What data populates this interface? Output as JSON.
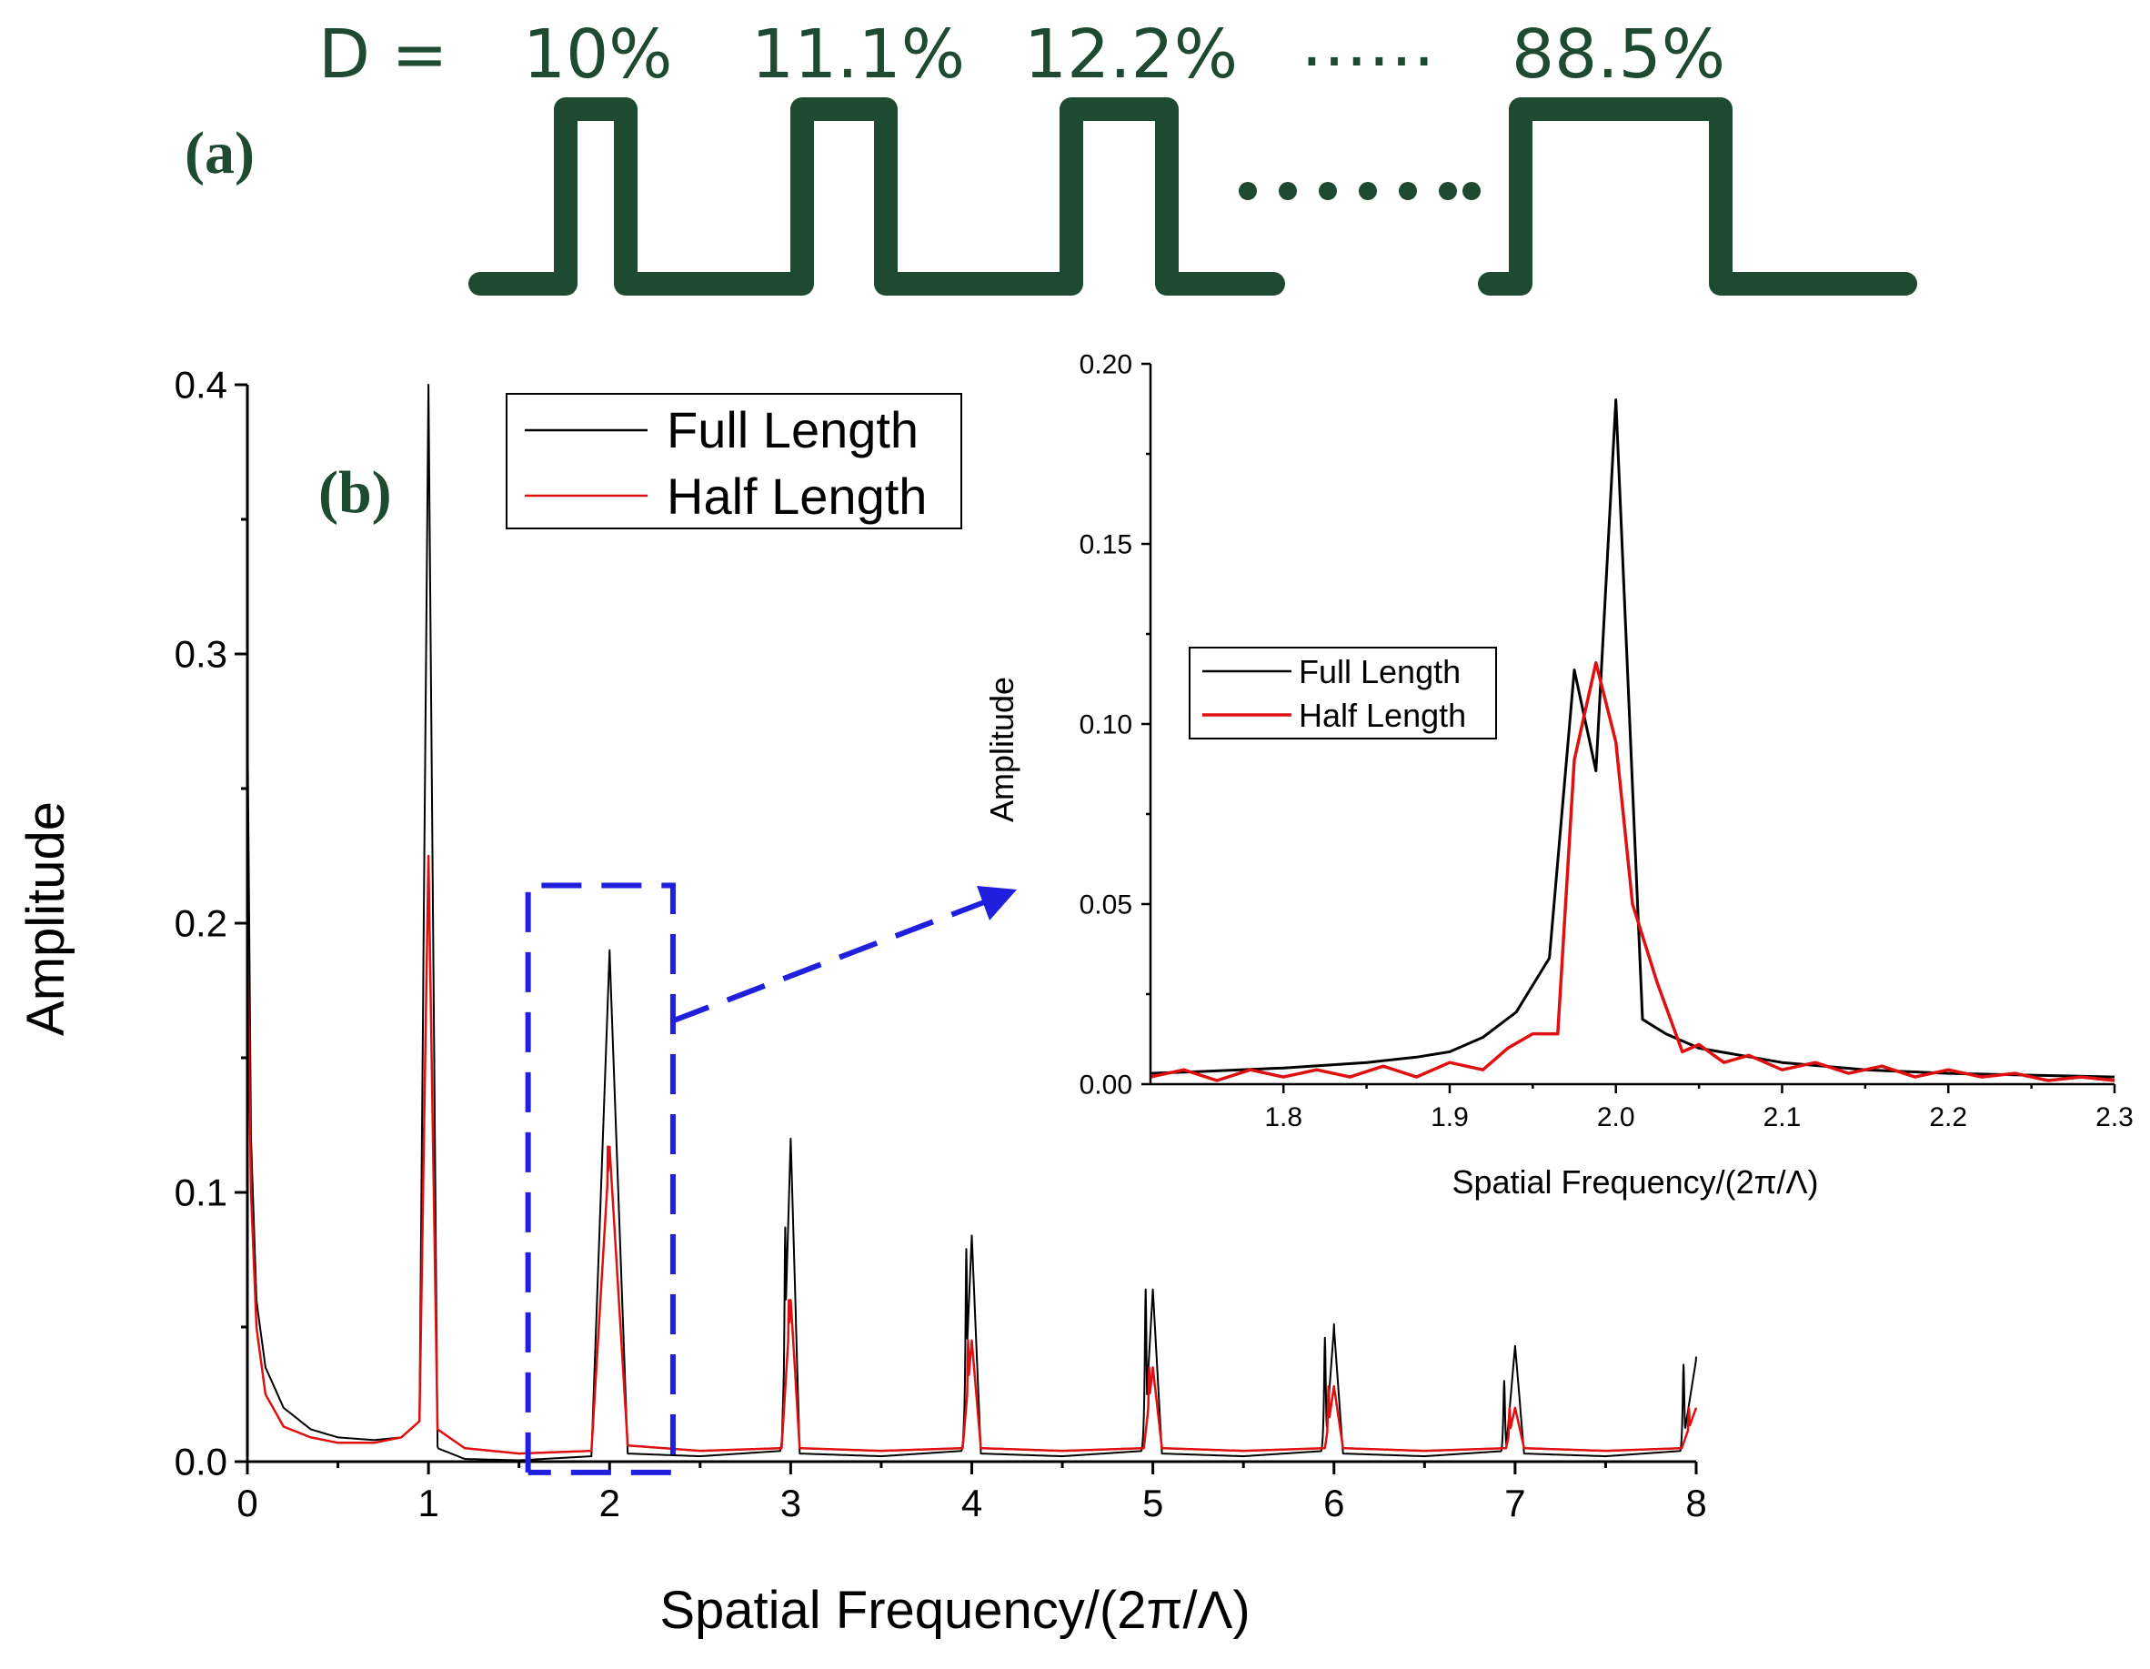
{
  "panel_a": {
    "label": "(a)",
    "d_label": "D =",
    "duty_cycles": [
      "10%",
      "11.1%",
      "12.2%",
      "88.5%"
    ],
    "ellipsis": "……",
    "colors": {
      "waveform": "#1d4a30"
    }
  },
  "chart_data": [
    {
      "id": "main",
      "type": "line",
      "panel_label": "(b)",
      "title": "",
      "xlabel": "Spatial Frequency/(2π/Λ)",
      "ylabel": "Amplitude",
      "xlim": [
        0,
        8
      ],
      "ylim": [
        0,
        0.4
      ],
      "xticks": [
        "0",
        "1",
        "2",
        "3",
        "4",
        "5",
        "6",
        "7",
        "8"
      ],
      "yticks": [
        "0.0",
        "0.1",
        "0.2",
        "0.3",
        "0.4"
      ],
      "legend": [
        "Full Length",
        "Half Length"
      ],
      "legend_position": "top-center",
      "grid": false,
      "series": [
        {
          "name": "Full Length",
          "color": "#000000",
          "base": [
            [
              0,
              0.28
            ],
            [
              0.02,
              0.12
            ],
            [
              0.05,
              0.06
            ],
            [
              0.1,
              0.035
            ],
            [
              0.2,
              0.02
            ],
            [
              0.35,
              0.012
            ],
            [
              0.5,
              0.009
            ],
            [
              0.7,
              0.008
            ],
            [
              0.85,
              0.009
            ],
            [
              0.95,
              0.015
            ],
            [
              1.0,
              0.4
            ],
            [
              1.05,
              0.005
            ],
            [
              1.2,
              0.001
            ],
            [
              1.5,
              0.0005
            ],
            [
              1.9,
              0.002
            ],
            [
              2.0,
              0.19
            ],
            [
              2.1,
              0.003
            ],
            [
              2.5,
              0.002
            ],
            [
              2.95,
              0.004
            ],
            [
              3.0,
              0.12
            ],
            [
              3.05,
              0.003
            ],
            [
              3.5,
              0.002
            ],
            [
              3.95,
              0.004
            ],
            [
              4.0,
              0.084
            ],
            [
              4.05,
              0.003
            ],
            [
              4.5,
              0.002
            ],
            [
              4.95,
              0.004
            ],
            [
              5.0,
              0.064
            ],
            [
              5.05,
              0.003
            ],
            [
              5.5,
              0.002
            ],
            [
              5.95,
              0.004
            ],
            [
              6.0,
              0.05
            ],
            [
              6.05,
              0.003
            ],
            [
              6.5,
              0.002
            ],
            [
              6.95,
              0.004
            ],
            [
              7.0,
              0.043
            ],
            [
              7.05,
              0.003
            ],
            [
              7.5,
              0.002
            ],
            [
              7.92,
              0.004
            ],
            [
              8.0,
              0.038
            ]
          ],
          "peaks": [
            {
              "x": 1.0,
              "y": 0.4
            },
            {
              "x": 1.97,
              "y": 0.115
            },
            {
              "x": 2.0,
              "y": 0.19
            },
            {
              "x": 2.97,
              "y": 0.087
            },
            {
              "x": 3.0,
              "y": 0.12
            },
            {
              "x": 3.97,
              "y": 0.079
            },
            {
              "x": 4.0,
              "y": 0.084
            },
            {
              "x": 4.96,
              "y": 0.064
            },
            {
              "x": 5.0,
              "y": 0.063
            },
            {
              "x": 5.95,
              "y": 0.046
            },
            {
              "x": 6.0,
              "y": 0.051
            },
            {
              "x": 6.94,
              "y": 0.03
            },
            {
              "x": 7.0,
              "y": 0.043
            },
            {
              "x": 7.93,
              "y": 0.036
            },
            {
              "x": 8.0,
              "y": 0.039
            }
          ]
        },
        {
          "name": "Half Length",
          "color": "#e01010",
          "base": [
            [
              0,
              0.2
            ],
            [
              0.02,
              0.1
            ],
            [
              0.05,
              0.05
            ],
            [
              0.1,
              0.025
            ],
            [
              0.2,
              0.013
            ],
            [
              0.35,
              0.009
            ],
            [
              0.5,
              0.007
            ],
            [
              0.7,
              0.007
            ],
            [
              0.85,
              0.009
            ],
            [
              0.95,
              0.015
            ],
            [
              1.0,
              0.225
            ],
            [
              1.05,
              0.012
            ],
            [
              1.2,
              0.005
            ],
            [
              1.5,
              0.003
            ],
            [
              1.9,
              0.004
            ],
            [
              2.0,
              0.117
            ],
            [
              2.1,
              0.006
            ],
            [
              2.5,
              0.004
            ],
            [
              2.95,
              0.005
            ],
            [
              3.0,
              0.06
            ],
            [
              3.05,
              0.005
            ],
            [
              3.5,
              0.004
            ],
            [
              3.95,
              0.005
            ],
            [
              4.0,
              0.045
            ],
            [
              4.05,
              0.005
            ],
            [
              4.5,
              0.004
            ],
            [
              4.95,
              0.005
            ],
            [
              5.0,
              0.035
            ],
            [
              5.05,
              0.005
            ],
            [
              5.5,
              0.004
            ],
            [
              5.95,
              0.005
            ],
            [
              6.0,
              0.028
            ],
            [
              6.05,
              0.005
            ],
            [
              6.5,
              0.004
            ],
            [
              6.95,
              0.005
            ],
            [
              7.0,
              0.02
            ],
            [
              7.05,
              0.005
            ],
            [
              7.5,
              0.004
            ],
            [
              7.92,
              0.005
            ],
            [
              8.0,
              0.02
            ]
          ],
          "peaks": [
            {
              "x": 1.0,
              "y": 0.225
            },
            {
              "x": 1.99,
              "y": 0.117
            },
            {
              "x": 2.99,
              "y": 0.06
            },
            {
              "x": 3.98,
              "y": 0.045
            },
            {
              "x": 4.98,
              "y": 0.035
            },
            {
              "x": 5.97,
              "y": 0.028
            },
            {
              "x": 6.97,
              "y": 0.02
            },
            {
              "x": 7.96,
              "y": 0.02
            }
          ]
        }
      ],
      "annotation": {
        "type": "zoom-box",
        "x_range": [
          1.55,
          2.35
        ],
        "y_range": [
          -0.004,
          0.214
        ],
        "color": "#1f1fdd"
      }
    },
    {
      "id": "inset",
      "type": "line",
      "title": "",
      "xlabel": "Spatial Frequency/(2π/Λ)",
      "ylabel": "Amplitude",
      "xlim": [
        1.72,
        2.3
      ],
      "ylim": [
        0,
        0.2
      ],
      "xticks": [
        "1.8",
        "1.9",
        "2.0",
        "2.1",
        "2.2",
        "2.3"
      ],
      "yticks": [
        "0.00",
        "0.05",
        "0.10",
        "0.15",
        "0.20"
      ],
      "legend": [
        "Full Length",
        "Half Length"
      ],
      "legend_position": "middle-left",
      "grid": false,
      "series": [
        {
          "name": "Full Length",
          "color": "#000000",
          "x": [
            1.72,
            1.75,
            1.8,
            1.85,
            1.88,
            1.9,
            1.92,
            1.94,
            1.96,
            1.975,
            1.988,
            2.0,
            2.016,
            2.03,
            2.05,
            2.1,
            2.15,
            2.2,
            2.25,
            2.3
          ],
          "y": [
            0.003,
            0.0035,
            0.0045,
            0.006,
            0.0075,
            0.009,
            0.013,
            0.02,
            0.035,
            0.115,
            0.087,
            0.19,
            0.018,
            0.014,
            0.01,
            0.006,
            0.004,
            0.003,
            0.0025,
            0.002
          ]
        },
        {
          "name": "Half Length",
          "color": "#e01010",
          "x": [
            1.72,
            1.74,
            1.76,
            1.78,
            1.8,
            1.82,
            1.84,
            1.86,
            1.88,
            1.9,
            1.92,
            1.935,
            1.95,
            1.965,
            1.975,
            1.988,
            2.0,
            2.01,
            2.025,
            2.04,
            2.05,
            2.065,
            2.08,
            2.1,
            2.12,
            2.14,
            2.16,
            2.18,
            2.2,
            2.22,
            2.24,
            2.26,
            2.28,
            2.3
          ],
          "y": [
            0.002,
            0.004,
            0.001,
            0.004,
            0.002,
            0.004,
            0.002,
            0.005,
            0.002,
            0.006,
            0.004,
            0.01,
            0.014,
            0.014,
            0.09,
            0.117,
            0.095,
            0.05,
            0.028,
            0.009,
            0.011,
            0.006,
            0.008,
            0.004,
            0.006,
            0.003,
            0.005,
            0.002,
            0.004,
            0.002,
            0.003,
            0.001,
            0.002,
            0.001
          ]
        }
      ]
    }
  ]
}
